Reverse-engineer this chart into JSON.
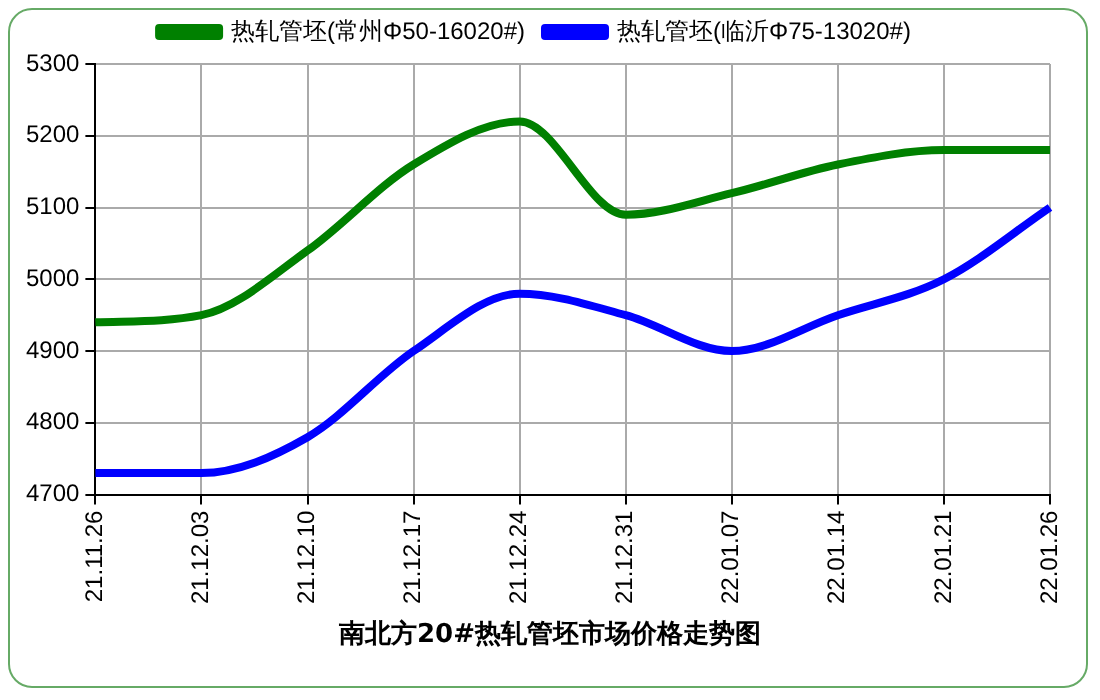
{
  "chart_data": {
    "type": "line",
    "title": "南北方20#热轧管坯市场价格走势图",
    "categories": [
      "21.11.26",
      "21.12.03",
      "21.12.10",
      "21.12.17",
      "21.12.24",
      "21.12.31",
      "22.01.07",
      "22.01.14",
      "22.01.21",
      "22.01.26"
    ],
    "series": [
      {
        "name": "热轧管坯(常州Φ50-16020#)",
        "color": "#008000",
        "values": [
          4940,
          4950,
          5040,
          5160,
          5220,
          5090,
          5120,
          5160,
          5180,
          5180
        ]
      },
      {
        "name": "热轧管坯(临沂Φ75-13020#)",
        "color": "#0000ff",
        "values": [
          4730,
          4730,
          4780,
          4900,
          4980,
          4950,
          4900,
          4950,
          5000,
          5100
        ]
      }
    ],
    "ylim": [
      4700,
      5300
    ],
    "yticks": [
      4700,
      4800,
      4900,
      5000,
      5100,
      5200,
      5300
    ],
    "grid": true,
    "legend": "top",
    "marker": "none",
    "line_style": "solid"
  }
}
